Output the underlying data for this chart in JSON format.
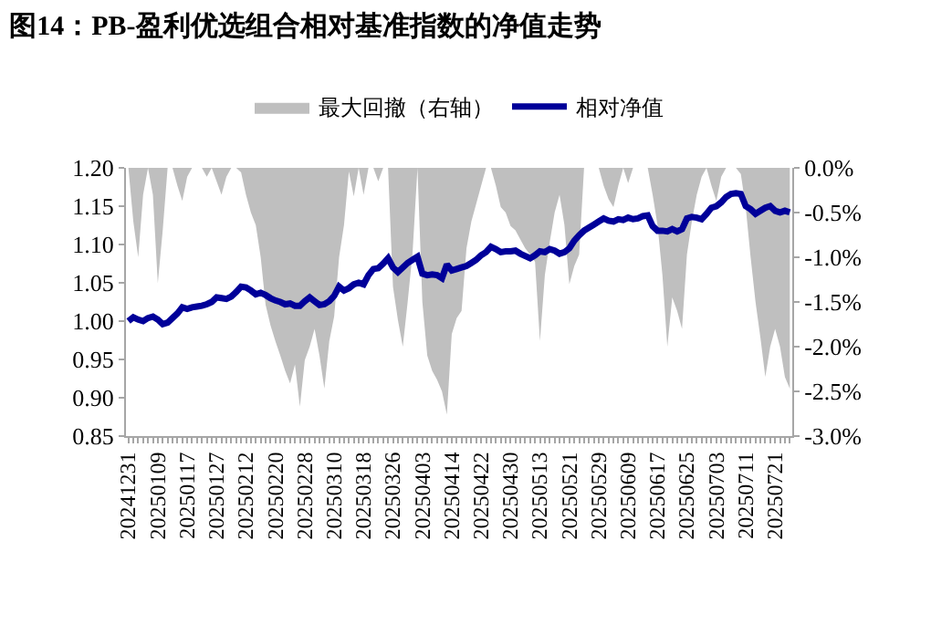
{
  "chart_data": {
    "type": "line",
    "title": "图14：PB-盈利优选组合相对基准指数的净值走势",
    "categories": [
      "20241231",
      null,
      null,
      null,
      null,
      null,
      "20250109",
      null,
      null,
      null,
      null,
      null,
      "20250117",
      null,
      null,
      null,
      null,
      null,
      "20250127",
      null,
      null,
      null,
      null,
      null,
      "20250212",
      null,
      null,
      null,
      null,
      null,
      "20250220",
      null,
      null,
      null,
      null,
      null,
      "20250228",
      null,
      null,
      null,
      null,
      null,
      "20250310",
      null,
      null,
      null,
      null,
      null,
      "20250318",
      null,
      null,
      null,
      null,
      null,
      "20250326",
      null,
      null,
      null,
      null,
      null,
      "20250403",
      null,
      null,
      null,
      null,
      null,
      "20250414",
      null,
      null,
      null,
      null,
      null,
      "20250422",
      null,
      null,
      null,
      null,
      null,
      "20250430",
      null,
      null,
      null,
      null,
      null,
      "20250513",
      null,
      null,
      null,
      null,
      null,
      "20250521",
      null,
      null,
      null,
      null,
      null,
      "20250529",
      null,
      null,
      null,
      null,
      null,
      "20250609",
      null,
      null,
      null,
      null,
      null,
      "20250617",
      null,
      null,
      null,
      null,
      null,
      "20250625",
      null,
      null,
      null,
      null,
      null,
      "20250703",
      null,
      null,
      null,
      null,
      null,
      "20250711",
      null,
      null,
      null,
      null,
      null,
      "20250721",
      null,
      null,
      null
    ],
    "series": [
      {
        "name": "最大回撤（右轴）",
        "type": "area",
        "axis": "y2",
        "color": "#bfbfbf",
        "values": [
          0,
          -0.6,
          -1.0,
          -0.3,
          0,
          -0.3,
          -1.29,
          -0.7,
          0,
          0,
          -0.2,
          -0.37,
          -0.1,
          0,
          0,
          0,
          -0.1,
          0,
          -0.15,
          -0.3,
          -0.1,
          0,
          0,
          -0.05,
          -0.3,
          -0.5,
          -0.64,
          -1.0,
          -1.53,
          -1.76,
          -1.94,
          -2.1,
          -2.27,
          -2.41,
          -2.2,
          -2.67,
          -2.15,
          -2.0,
          -1.8,
          -2.1,
          -2.47,
          -1.94,
          -1.66,
          -1.0,
          -0.64,
          -0.04,
          -0.32,
          0,
          -0.3,
          0,
          0,
          -0.15,
          0,
          0,
          -1.33,
          -1.7,
          -2.0,
          -1.5,
          -0.95,
          0,
          -1.5,
          -2.1,
          -2.27,
          -2.37,
          -2.5,
          -2.76,
          -1.86,
          -1.68,
          -1.6,
          -0.9,
          -0.6,
          -0.4,
          -0.2,
          0,
          0,
          -0.2,
          -0.44,
          -0.5,
          -0.65,
          -0.7,
          -0.8,
          -0.9,
          -0.97,
          -1.05,
          -1.94,
          -1.2,
          -0.83,
          -0.5,
          -0.3,
          -0.64,
          -1.3,
          -1.1,
          -0.97,
          0,
          0,
          0,
          0,
          -0.2,
          -0.35,
          -0.44,
          -0.2,
          0,
          -0.17,
          0,
          0,
          0,
          0,
          -0.3,
          -0.64,
          -1.2,
          -2.0,
          -1.45,
          -1.6,
          -1.8,
          -0.97,
          -0.6,
          -0.3,
          -0.1,
          0,
          -0.2,
          -0.37,
          -0.1,
          0,
          0,
          0,
          -0.07,
          -0.44,
          -1.0,
          -1.5,
          -1.9,
          -2.34,
          -2.0,
          -1.8,
          -2.0,
          -2.34,
          -2.47
        ]
      },
      {
        "name": "相对净值",
        "color": "#000099",
        "values": [
          1.0,
          1.005,
          1.002,
          1.0,
          1.004,
          1.006,
          1.002,
          0.996,
          0.998,
          1.004,
          1.01,
          1.018,
          1.016,
          1.018,
          1.019,
          1.02,
          1.022,
          1.025,
          1.031,
          1.03,
          1.029,
          1.032,
          1.038,
          1.045,
          1.044,
          1.04,
          1.035,
          1.037,
          1.034,
          1.03,
          1.027,
          1.025,
          1.022,
          1.023,
          1.02,
          1.02,
          1.026,
          1.031,
          1.026,
          1.021,
          1.022,
          1.026,
          1.033,
          1.045,
          1.04,
          1.043,
          1.048,
          1.05,
          1.048,
          1.06,
          1.068,
          1.069,
          1.075,
          1.082,
          1.07,
          1.064,
          1.07,
          1.076,
          1.08,
          1.084,
          1.062,
          1.06,
          1.061,
          1.06,
          1.056,
          1.074,
          1.066,
          1.068,
          1.07,
          1.072,
          1.076,
          1.08,
          1.086,
          1.09,
          1.097,
          1.094,
          1.09,
          1.091,
          1.091,
          1.092,
          1.088,
          1.085,
          1.082,
          1.086,
          1.091,
          1.09,
          1.094,
          1.092,
          1.088,
          1.09,
          1.095,
          1.105,
          1.112,
          1.118,
          1.122,
          1.126,
          1.13,
          1.134,
          1.131,
          1.13,
          1.133,
          1.132,
          1.135,
          1.133,
          1.134,
          1.137,
          1.138,
          1.124,
          1.118,
          1.118,
          1.117,
          1.12,
          1.117,
          1.12,
          1.134,
          1.136,
          1.135,
          1.133,
          1.14,
          1.148,
          1.15,
          1.155,
          1.162,
          1.166,
          1.167,
          1.166,
          1.15,
          1.146,
          1.14,
          1.144,
          1.148,
          1.15,
          1.144,
          1.142,
          1.144,
          1.142
        ]
      }
    ],
    "ylim": [
      0.85,
      1.2
    ],
    "yticks": [
      {
        "value": 0.85,
        "label": "0.85"
      },
      {
        "value": 0.9,
        "label": "0.90"
      },
      {
        "value": 0.95,
        "label": "0.95"
      },
      {
        "value": 1.0,
        "label": "1.00"
      },
      {
        "value": 1.05,
        "label": "1.05"
      },
      {
        "value": 1.1,
        "label": "1.10"
      },
      {
        "value": 1.15,
        "label": "1.15"
      },
      {
        "value": 1.2,
        "label": "1.20"
      }
    ],
    "y2lim": [
      -3.0,
      0.0
    ],
    "y2ticks": [
      {
        "value": 0,
        "label": "0.0%"
      },
      {
        "value": -0.5,
        "label": "-0.5%"
      },
      {
        "value": -1.0,
        "label": "-1.0%"
      },
      {
        "value": -1.5,
        "label": "-1.5%"
      },
      {
        "value": -2.0,
        "label": "-2.0%"
      },
      {
        "value": -2.5,
        "label": "-2.5%"
      },
      {
        "value": -3.0,
        "label": "-3.0%"
      }
    ],
    "legend": "top"
  }
}
